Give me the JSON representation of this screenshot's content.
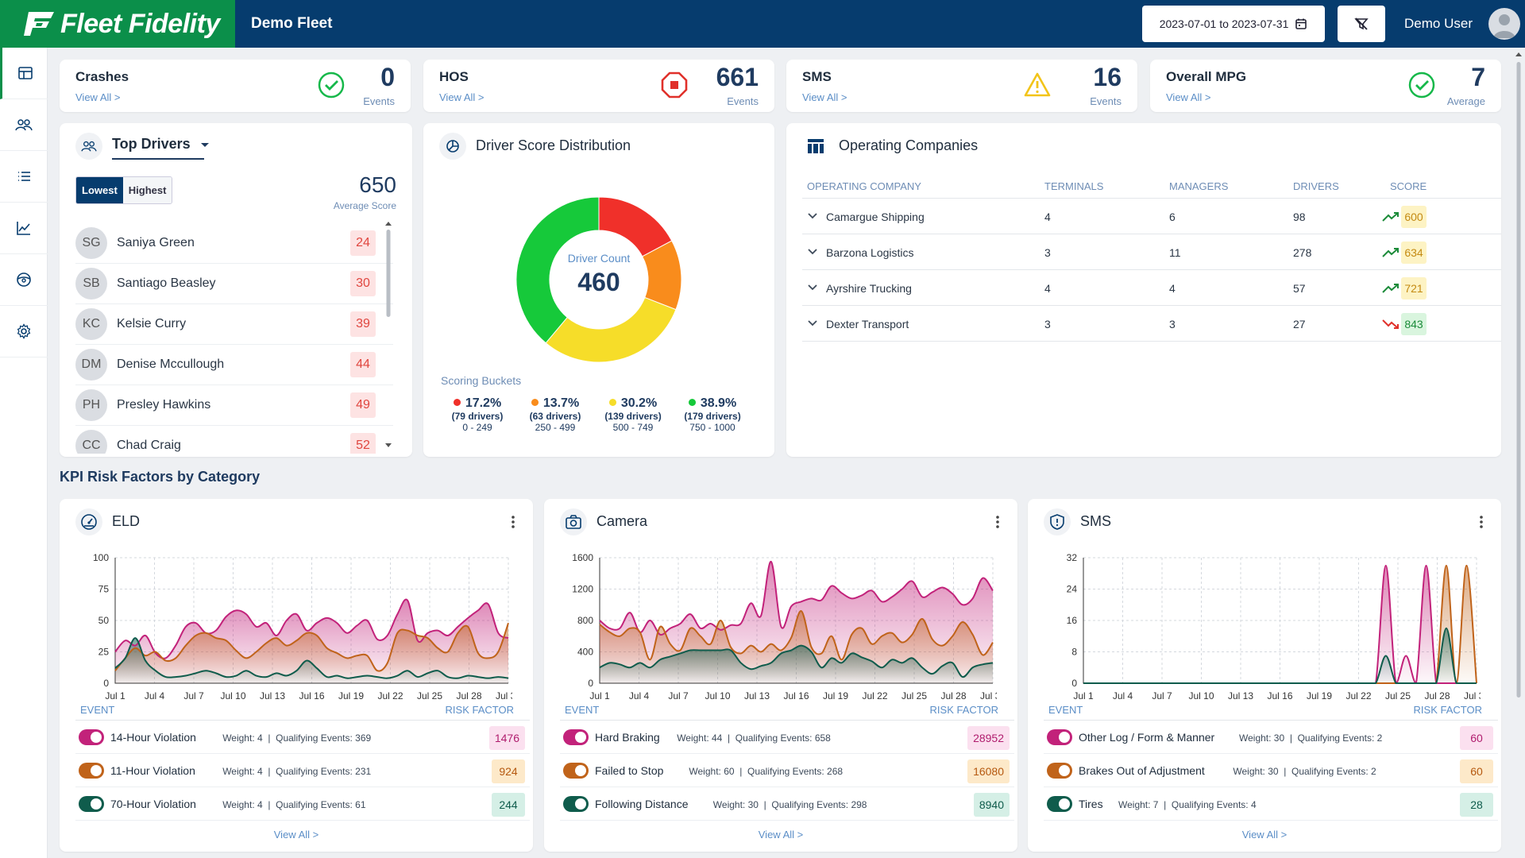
{
  "header": {
    "brand": "Fleet Fidelity",
    "fleet_name": "Demo Fleet",
    "date_range": "2023-07-01 to 2023-07-31",
    "user_name": "Demo User"
  },
  "kpis": [
    {
      "title": "Crashes",
      "link": "View All >",
      "value": "0",
      "unit": "Events",
      "icon": "check-circle-icon"
    },
    {
      "title": "HOS",
      "link": "View All >",
      "value": "661",
      "unit": "Events",
      "icon": "stop-octagon-icon"
    },
    {
      "title": "SMS",
      "link": "View All >",
      "value": "16",
      "unit": "Events",
      "icon": "warning-triangle-icon"
    },
    {
      "title": "Overall MPG",
      "link": "View All >",
      "value": "7",
      "unit": "Average",
      "icon": "check-circle-icon"
    }
  ],
  "top_drivers": {
    "title": "Top Drivers",
    "toggle_lowest": "Lowest",
    "toggle_highest": "Highest",
    "average_score": "650",
    "average_label": "Average Score",
    "drivers": [
      {
        "initials": "SG",
        "name": "Saniya Green",
        "score": "24"
      },
      {
        "initials": "SB",
        "name": "Santiago Beasley",
        "score": "30"
      },
      {
        "initials": "KC",
        "name": "Kelsie Curry",
        "score": "39"
      },
      {
        "initials": "DM",
        "name": "Denise Mccullough",
        "score": "44"
      },
      {
        "initials": "PH",
        "name": "Presley Hawkins",
        "score": "49"
      },
      {
        "initials": "CC",
        "name": "Chad Craig",
        "score": "52"
      }
    ]
  },
  "score_distribution": {
    "title": "Driver Score Distribution",
    "center_label": "Driver Count",
    "center_value": "460",
    "buckets_title": "Scoring Buckets",
    "buckets": [
      {
        "pct": "17.2%",
        "count": "(79 drivers)",
        "range": "0 - 249",
        "color": "#f0302a"
      },
      {
        "pct": "13.7%",
        "count": "(63 drivers)",
        "range": "250 - 499",
        "color": "#f98c1c"
      },
      {
        "pct": "30.2%",
        "count": "(139 drivers)",
        "range": "500 - 749",
        "color": "#f6dd29"
      },
      {
        "pct": "38.9%",
        "count": "(179 drivers)",
        "range": "750 - 1000",
        "color": "#16c93a"
      }
    ]
  },
  "operating_companies": {
    "title": "Operating Companies",
    "columns": [
      "OPERATING COMPANY",
      "TERMINALS",
      "MANAGERS",
      "DRIVERS",
      "SCORE"
    ],
    "rows": [
      {
        "name": "Camargue Shipping",
        "terminals": "4",
        "managers": "6",
        "drivers": "98",
        "score": "600",
        "trend": "up"
      },
      {
        "name": "Barzona Logistics",
        "terminals": "3",
        "managers": "11",
        "drivers": "278",
        "score": "634",
        "trend": "up"
      },
      {
        "name": "Ayrshire Trucking",
        "terminals": "4",
        "managers": "4",
        "drivers": "57",
        "score": "721",
        "trend": "up"
      },
      {
        "name": "Dexter Transport",
        "terminals": "3",
        "managers": "3",
        "drivers": "27",
        "score": "843",
        "trend": "down"
      }
    ]
  },
  "risk_section_title": "KPI Risk Factors by Category",
  "risk_cards": [
    {
      "title": "ELD",
      "icon": "gauge-icon",
      "event_header": "EVENT",
      "rf_header": "RISK FACTOR",
      "view_all": "View All >",
      "events": [
        {
          "name": "14-Hour Violation",
          "weight": "Weight: 4",
          "qualifying": "Qualifying Events: 369",
          "risk": "1476",
          "color": "#c2227a"
        },
        {
          "name": "11-Hour Violation",
          "weight": "Weight: 4",
          "qualifying": "Qualifying Events: 231",
          "risk": "924",
          "color": "#c0631a"
        },
        {
          "name": "70-Hour Violation",
          "weight": "Weight: 4",
          "qualifying": "Qualifying Events: 61",
          "risk": "244",
          "color": "#0f5c4c"
        }
      ]
    },
    {
      "title": "Camera",
      "icon": "camera-icon",
      "event_header": "EVENT",
      "rf_header": "RISK FACTOR",
      "view_all": "View All >",
      "events": [
        {
          "name": "Hard Braking",
          "weight": "Weight: 44",
          "qualifying": "Qualifying Events: 658",
          "risk": "28952",
          "color": "#c2227a"
        },
        {
          "name": "Failed to Stop",
          "weight": "Weight: 60",
          "qualifying": "Qualifying Events: 268",
          "risk": "16080",
          "color": "#c0631a"
        },
        {
          "name": "Following Distance",
          "weight": "Weight: 30",
          "qualifying": "Qualifying Events: 298",
          "risk": "8940",
          "color": "#0f5c4c"
        }
      ]
    },
    {
      "title": "SMS",
      "icon": "shield-icon",
      "event_header": "EVENT",
      "rf_header": "RISK FACTOR",
      "view_all": "View All >",
      "events": [
        {
          "name": "Other Log / Form & Manner",
          "weight": "Weight: 30",
          "qualifying": "Qualifying Events: 2",
          "risk": "60",
          "color": "#c2227a"
        },
        {
          "name": "Brakes Out of Adjustment",
          "weight": "Weight: 30",
          "qualifying": "Qualifying Events: 2",
          "risk": "60",
          "color": "#c0631a"
        },
        {
          "name": "Tires",
          "weight": "Weight: 7",
          "qualifying": "Qualifying Events: 4",
          "risk": "28",
          "color": "#0f5c4c"
        }
      ]
    }
  ],
  "chart_data": [
    {
      "type": "area",
      "yticks": [
        0,
        25,
        50,
        75,
        100
      ],
      "ylim": [
        0,
        100
      ],
      "xticks": [
        "Jul 1",
        "Jul 4",
        "Jul 7",
        "Jul 10",
        "Jul 13",
        "Jul 16",
        "Jul 19",
        "Jul 22",
        "Jul 25",
        "Jul 28",
        "Jul 31"
      ],
      "series": [
        {
          "values": [
            25,
            34,
            30,
            38,
            24,
            20,
            30,
            45,
            48,
            40,
            42,
            53,
            58,
            55,
            45,
            48,
            38,
            50,
            55,
            42,
            48,
            52,
            48,
            40,
            46,
            50,
            35,
            38,
            55,
            66,
            34,
            40,
            42,
            38,
            45,
            52,
            58,
            63,
            40,
            36
          ]
        },
        {
          "values": [
            10,
            20,
            28,
            22,
            25,
            18,
            20,
            30,
            38,
            40,
            36,
            34,
            26,
            20,
            25,
            32,
            36,
            30,
            34,
            40,
            38,
            28,
            24,
            20,
            22,
            22,
            10,
            16,
            40,
            42,
            38,
            36,
            28,
            25,
            40,
            45,
            24,
            20,
            25,
            48
          ]
        },
        {
          "values": [
            12,
            20,
            36,
            18,
            10,
            5,
            5,
            6,
            8,
            10,
            8,
            5,
            6,
            10,
            6,
            5,
            8,
            6,
            10,
            18,
            12,
            5,
            6,
            4,
            5,
            6,
            5,
            4,
            6,
            10,
            5,
            8,
            10,
            5,
            4,
            6,
            5,
            4,
            5,
            4
          ]
        }
      ]
    },
    {
      "type": "area",
      "yticks": [
        0,
        400,
        800,
        1200,
        1600
      ],
      "ylim": [
        0,
        1600
      ],
      "xticks": [
        "Jul 1",
        "Jul 4",
        "Jul 7",
        "Jul 10",
        "Jul 13",
        "Jul 16",
        "Jul 19",
        "Jul 22",
        "Jul 25",
        "Jul 28",
        "Jul 31"
      ],
      "series": [
        {
          "values": [
            800,
            700,
            700,
            900,
            650,
            800,
            620,
            700,
            760,
            880,
            700,
            760,
            680,
            740,
            760,
            1020,
            860,
            1550,
            720,
            980,
            1040,
            1080,
            1060,
            1240,
            1150,
            1080,
            1120,
            1180,
            1040,
            1100,
            1200,
            1300,
            1100,
            1160,
            1220,
            1140,
            1000,
            1080,
            1340,
            1180
          ]
        },
        {
          "values": [
            750,
            650,
            600,
            700,
            650,
            300,
            720,
            500,
            420,
            700,
            600,
            500,
            800,
            460,
            380,
            480,
            400,
            500,
            420,
            580,
            920,
            460,
            380,
            600,
            300,
            620,
            700,
            500,
            600,
            640,
            520,
            620,
            820,
            560,
            480,
            600,
            780,
            620,
            360,
            520
          ]
        },
        {
          "values": [
            200,
            260,
            240,
            200,
            260,
            200,
            300,
            340,
            380,
            420,
            420,
            420,
            420,
            420,
            260,
            180,
            220,
            260,
            380,
            420,
            480,
            400,
            200,
            320,
            260,
            380,
            330,
            280,
            200,
            300,
            260,
            320,
            200,
            120,
            220,
            260,
            80,
            200,
            240,
            260
          ]
        }
      ]
    },
    {
      "type": "area",
      "yticks": [
        0,
        8,
        16,
        24,
        32
      ],
      "ylim": [
        0,
        32
      ],
      "xticks": [
        "Jul 1",
        "Jul 4",
        "Jul 7",
        "Jul 10",
        "Jul 13",
        "Jul 16",
        "Jul 19",
        "Jul 22",
        "Jul 25",
        "Jul 28",
        "Jul 31"
      ],
      "series": [
        {
          "values": [
            0,
            0,
            0,
            0,
            0,
            0,
            0,
            0,
            0,
            0,
            0,
            0,
            0,
            0,
            0,
            0,
            0,
            0,
            0,
            0,
            0,
            0,
            0,
            0,
            0,
            0,
            0,
            0,
            0,
            0,
            30,
            0,
            7,
            0,
            30,
            0,
            0,
            0,
            0,
            0
          ]
        },
        {
          "values": [
            0,
            0,
            0,
            0,
            0,
            0,
            0,
            0,
            0,
            0,
            0,
            0,
            0,
            0,
            0,
            0,
            0,
            0,
            0,
            0,
            0,
            0,
            0,
            0,
            0,
            0,
            0,
            0,
            0,
            0,
            0,
            0,
            0,
            0,
            0,
            0,
            30,
            0,
            30,
            0
          ]
        },
        {
          "values": [
            0,
            0,
            0,
            0,
            0,
            0,
            0,
            0,
            0,
            0,
            0,
            0,
            0,
            0,
            0,
            0,
            0,
            0,
            0,
            0,
            0,
            0,
            0,
            0,
            0,
            0,
            0,
            0,
            0,
            0,
            7,
            0,
            0,
            0,
            0,
            0,
            14,
            0,
            0,
            0
          ]
        }
      ]
    }
  ]
}
